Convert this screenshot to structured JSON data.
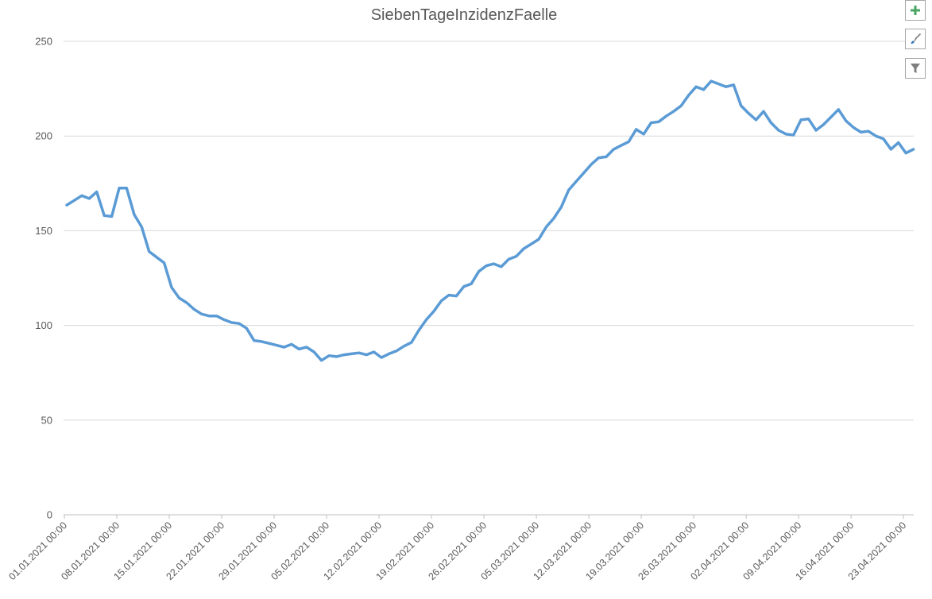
{
  "chart_data": {
    "type": "line",
    "title": "SiebenTageInzidenzFaelle",
    "xlabel": "",
    "ylabel": "",
    "ylim": [
      0,
      250
    ],
    "y_ticks": [
      "0",
      "50",
      "100",
      "150",
      "200",
      "250"
    ],
    "x_start": "01.01.2021",
    "x_ticks": [
      "01.01.2021 00:00",
      "08.01.2021 00:00",
      "15.01.2021 00:00",
      "22.01.2021 00:00",
      "29.01.2021 00:00",
      "05.02.2021 00:00",
      "12.02.2021 00:00",
      "19.02.2021 00:00",
      "26.02.2021 00:00",
      "05.03.2021 00:00",
      "12.03.2021 00:00",
      "19.03.2021 00:00",
      "26.03.2021 00:00",
      "02.04.2021 00:00",
      "09.04.2021 00:00",
      "16.04.2021 00:00",
      "23.04.2021 00:00"
    ],
    "grid": true,
    "legend": "none",
    "series": [
      {
        "color": "#5b9bd5",
        "values": [
          163.5,
          166,
          168.5,
          167,
          170.5,
          158,
          157.5,
          172.5,
          172.5,
          158.5,
          152,
          139,
          136,
          133,
          120,
          114.5,
          112,
          108.5,
          106,
          105,
          105,
          103,
          101.5,
          101,
          98.5,
          92,
          91.5,
          90.5,
          89.5,
          88.5,
          90,
          87.5,
          88.5,
          86,
          81.5,
          84,
          83.5,
          84.5,
          85,
          85.5,
          84.5,
          86,
          83,
          85,
          86.5,
          89,
          91,
          97.5,
          103,
          107.5,
          113,
          116,
          115.5,
          120.5,
          122,
          128.5,
          131.5,
          132.5,
          131,
          135,
          136.5,
          140.5,
          143,
          145.5,
          152,
          156.5,
          162.5,
          171.5,
          176,
          180.5,
          185,
          188.5,
          189,
          193,
          195,
          197,
          203.5,
          201,
          207,
          207.5,
          210.5,
          213,
          216,
          221.5,
          226,
          224.5,
          229,
          227.5,
          226,
          227,
          216,
          212,
          208.5,
          213,
          207,
          203,
          201,
          200.5,
          208.5,
          209,
          203,
          206,
          210,
          214,
          208,
          204.5,
          202,
          202.5,
          200,
          198.5,
          193,
          196.5,
          191,
          193
        ]
      }
    ]
  },
  "toolbar": {
    "add_icon": "plus-icon",
    "style_icon": "brush-icon",
    "filter_icon": "filter-icon"
  }
}
